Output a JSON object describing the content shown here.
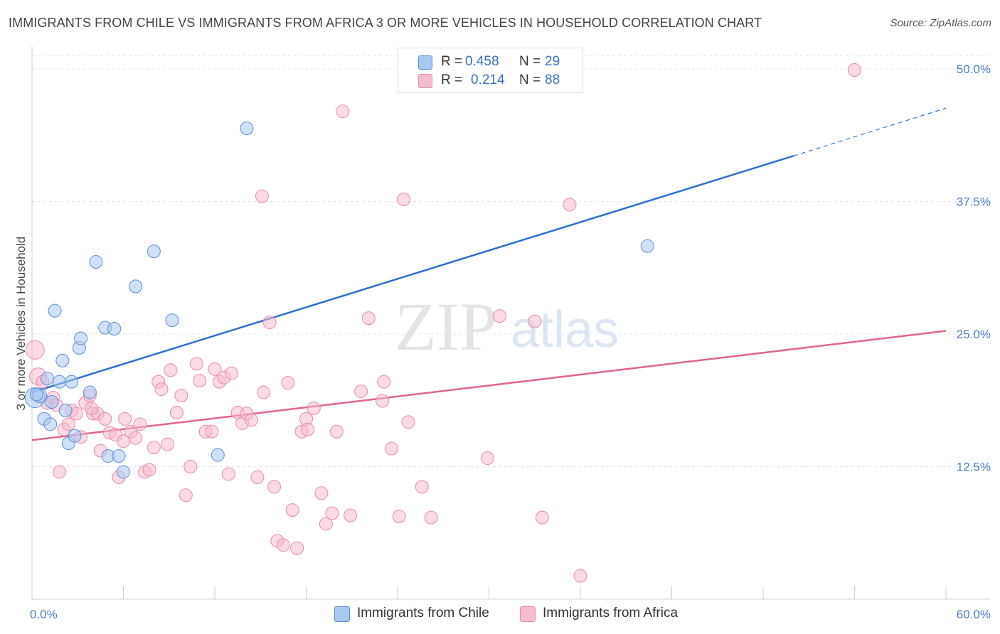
{
  "header": {
    "title": "IMMIGRANTS FROM CHILE VS IMMIGRANTS FROM AFRICA 3 OR MORE VEHICLES IN HOUSEHOLD CORRELATION CHART",
    "source": "Source: ZipAtlas.com"
  },
  "watermark": {
    "zip": "ZIP",
    "atlas": "atlas"
  },
  "legend_top": {
    "rows": [
      {
        "r_label": "R =",
        "r_value": "0.458",
        "n_label": "N =",
        "n_value": "29",
        "color": "#a9c8f0"
      },
      {
        "r_label": "R =",
        "r_value": "0.214",
        "n_label": "N =",
        "n_value": "88",
        "color": "#f6bccd"
      }
    ]
  },
  "legend_bottom": {
    "items": [
      {
        "label": "Immigrants from Chile",
        "color": "#a9c8f0"
      },
      {
        "label": "Immigrants from Africa",
        "color": "#f6bccd"
      }
    ]
  },
  "chart_data": {
    "type": "scatter",
    "title": "IMMIGRANTS FROM CHILE VS IMMIGRANTS FROM AFRICA 3 OR MORE VEHICLES IN HOUSEHOLD CORRELATION CHART",
    "xlabel": "",
    "ylabel": "3 or more Vehicles in Household",
    "xlim": [
      0,
      60
    ],
    "ylim": [
      0,
      50
    ],
    "x_tick_labels": [
      "0.0%",
      "60.0%"
    ],
    "y_ticks": [
      12.5,
      25.0,
      37.5,
      50.0
    ],
    "y_tick_labels": [
      "12.5%",
      "25.0%",
      "37.5%",
      "50.0%"
    ],
    "grid": true,
    "legend_position": "top-center",
    "series": [
      {
        "name": "Immigrants from Chile",
        "color": "#a9c8f0",
        "edge_color": "#5b8fd6",
        "line_color": "#2c6fd1",
        "trend": {
          "x": [
            0,
            50
          ],
          "y": [
            19.5,
            41.8
          ],
          "dashed_to": [
            60,
            46.3
          ]
        },
        "points": [
          [
            0.2,
            19.0,
            14
          ],
          [
            0.5,
            19.2,
            10
          ],
          [
            0.8,
            17.0,
            9
          ],
          [
            1.0,
            20.8,
            9
          ],
          [
            1.2,
            16.5,
            9
          ],
          [
            1.5,
            27.2,
            9
          ],
          [
            1.8,
            20.5,
            9
          ],
          [
            2.0,
            22.5,
            9
          ],
          [
            2.2,
            17.8,
            9
          ],
          [
            2.4,
            14.7,
            9
          ],
          [
            2.6,
            20.5,
            9
          ],
          [
            2.8,
            15.4,
            9
          ],
          [
            3.1,
            23.7,
            9
          ],
          [
            3.2,
            24.6,
            9
          ],
          [
            3.8,
            19.5,
            9
          ],
          [
            4.2,
            31.8,
            9
          ],
          [
            4.8,
            25.6,
            9
          ],
          [
            5.0,
            13.5,
            9
          ],
          [
            5.4,
            25.5,
            9
          ],
          [
            5.7,
            13.5,
            9
          ],
          [
            6.0,
            12.0,
            9
          ],
          [
            6.8,
            29.5,
            9
          ],
          [
            8.0,
            32.8,
            9
          ],
          [
            9.2,
            26.3,
            9
          ],
          [
            12.2,
            13.6,
            9
          ],
          [
            14.1,
            44.4,
            9
          ],
          [
            40.4,
            33.3,
            9
          ],
          [
            0.3,
            19.3,
            9
          ],
          [
            1.3,
            18.6,
            9
          ]
        ]
      },
      {
        "name": "Immigrants from Africa",
        "color": "#f6bccd",
        "edge_color": "#e68ca8",
        "line_color": "#e2648e",
        "trend": {
          "x": [
            0,
            60
          ],
          "y": [
            15.0,
            25.3
          ]
        },
        "points": [
          [
            0.2,
            23.5,
            13
          ],
          [
            0.4,
            21.0,
            12
          ],
          [
            0.7,
            20.5,
            9
          ],
          [
            1.0,
            18.5,
            9
          ],
          [
            1.4,
            19.0,
            9
          ],
          [
            1.8,
            12.0,
            9
          ],
          [
            2.1,
            16.0,
            9
          ],
          [
            2.4,
            16.5,
            9
          ],
          [
            2.6,
            17.8,
            9
          ],
          [
            2.9,
            17.5,
            9
          ],
          [
            3.2,
            15.3,
            9
          ],
          [
            3.5,
            18.5,
            9
          ],
          [
            3.8,
            19.2,
            9
          ],
          [
            4.0,
            17.5,
            9
          ],
          [
            4.3,
            17.5,
            9
          ],
          [
            4.5,
            14.0,
            9
          ],
          [
            4.8,
            17.0,
            9
          ],
          [
            5.1,
            15.7,
            9
          ],
          [
            5.5,
            15.5,
            9
          ],
          [
            5.7,
            11.5,
            9
          ],
          [
            6.0,
            14.9,
            9
          ],
          [
            6.1,
            17.0,
            9
          ],
          [
            6.5,
            15.8,
            9
          ],
          [
            6.8,
            15.2,
            9
          ],
          [
            7.1,
            16.5,
            9
          ],
          [
            7.4,
            12.0,
            9
          ],
          [
            7.7,
            12.2,
            9
          ],
          [
            8.0,
            14.3,
            9
          ],
          [
            8.3,
            20.5,
            9
          ],
          [
            8.5,
            19.8,
            9
          ],
          [
            8.9,
            14.6,
            9
          ],
          [
            9.1,
            21.6,
            9
          ],
          [
            9.5,
            17.6,
            9
          ],
          [
            9.8,
            19.2,
            9
          ],
          [
            10.1,
            9.8,
            9
          ],
          [
            10.4,
            12.5,
            9
          ],
          [
            10.8,
            22.2,
            9
          ],
          [
            11.0,
            20.6,
            9
          ],
          [
            11.4,
            15.8,
            9
          ],
          [
            11.8,
            15.8,
            9
          ],
          [
            12.0,
            21.7,
            9
          ],
          [
            12.3,
            20.5,
            9
          ],
          [
            12.6,
            20.9,
            9
          ],
          [
            12.9,
            11.8,
            9
          ],
          [
            13.1,
            21.3,
            9
          ],
          [
            13.5,
            17.6,
            9
          ],
          [
            13.8,
            16.6,
            9
          ],
          [
            14.1,
            17.5,
            9
          ],
          [
            14.4,
            16.9,
            9
          ],
          [
            14.8,
            11.5,
            9
          ],
          [
            15.1,
            38.0,
            9
          ],
          [
            15.2,
            19.5,
            9
          ],
          [
            15.6,
            26.1,
            9
          ],
          [
            15.9,
            10.6,
            9
          ],
          [
            16.1,
            5.5,
            9
          ],
          [
            16.5,
            5.1,
            9
          ],
          [
            16.8,
            20.4,
            9
          ],
          [
            17.1,
            8.4,
            9
          ],
          [
            17.4,
            4.8,
            9
          ],
          [
            17.7,
            15.8,
            9
          ],
          [
            18.0,
            17.0,
            9
          ],
          [
            18.1,
            16.0,
            9
          ],
          [
            18.5,
            18.0,
            9
          ],
          [
            19.0,
            10.0,
            9
          ],
          [
            19.3,
            7.1,
            9
          ],
          [
            19.7,
            8.1,
            9
          ],
          [
            20.0,
            15.8,
            9
          ],
          [
            20.4,
            46.0,
            9
          ],
          [
            20.9,
            7.9,
            9
          ],
          [
            21.6,
            19.6,
            9
          ],
          [
            22.1,
            26.5,
            9
          ],
          [
            23.0,
            18.7,
            9
          ],
          [
            23.1,
            20.5,
            9
          ],
          [
            23.6,
            14.2,
            9
          ],
          [
            24.1,
            7.8,
            9
          ],
          [
            24.4,
            37.7,
            9
          ],
          [
            24.7,
            16.7,
            9
          ],
          [
            25.6,
            10.6,
            9
          ],
          [
            26.2,
            7.7,
            9
          ],
          [
            29.9,
            13.3,
            9
          ],
          [
            30.7,
            26.7,
            9
          ],
          [
            33.0,
            26.2,
            9
          ],
          [
            33.5,
            7.7,
            9
          ],
          [
            35.3,
            37.2,
            9
          ],
          [
            36.0,
            2.2,
            9
          ],
          [
            54.0,
            49.9,
            9
          ],
          [
            1.6,
            18.3,
            9
          ],
          [
            3.9,
            18.0,
            9
          ]
        ]
      }
    ]
  }
}
